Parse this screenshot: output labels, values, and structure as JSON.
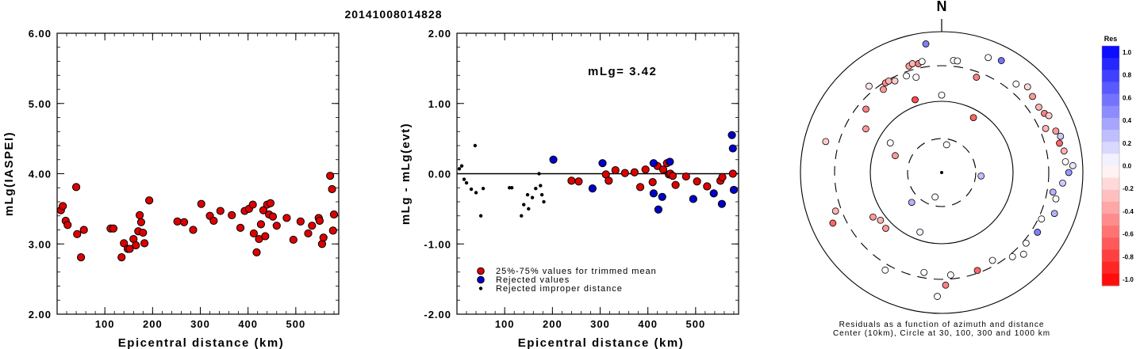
{
  "page_title": "20141008014828",
  "chart_data": [
    {
      "type": "scatter",
      "title": "",
      "xlabel": "Epicentral distance (km)",
      "ylabel": "mLg(IASPEI)",
      "xlim": [
        0,
        590
      ],
      "ylim": [
        2.0,
        6.0
      ],
      "xticks": [
        100,
        200,
        300,
        400,
        500
      ],
      "xtick_labels": [
        "100",
        "200",
        "300",
        "400",
        "500"
      ],
      "yticks": [
        2,
        3,
        4,
        5,
        6
      ],
      "ytick_labels": [
        "2.00",
        "3.00",
        "4.00",
        "5.00",
        "6.00"
      ],
      "color": "#dd0000",
      "points": [
        [
          8,
          3.48
        ],
        [
          12,
          3.54
        ],
        [
          18,
          3.33
        ],
        [
          22,
          3.27
        ],
        [
          40,
          3.81
        ],
        [
          42,
          3.14
        ],
        [
          50,
          2.81
        ],
        [
          56,
          3.2
        ],
        [
          112,
          3.22
        ],
        [
          118,
          3.22
        ],
        [
          135,
          2.81
        ],
        [
          140,
          3.01
        ],
        [
          148,
          2.93
        ],
        [
          152,
          2.93
        ],
        [
          160,
          3.07
        ],
        [
          165,
          2.98
        ],
        [
          170,
          3.18
        ],
        [
          173,
          3.41
        ],
        [
          176,
          3.31
        ],
        [
          180,
          3.16
        ],
        [
          183,
          3.01
        ],
        [
          193,
          3.62
        ],
        [
          252,
          3.32
        ],
        [
          266,
          3.31
        ],
        [
          285,
          3.2
        ],
        [
          302,
          3.57
        ],
        [
          320,
          3.4
        ],
        [
          328,
          3.33
        ],
        [
          342,
          3.47
        ],
        [
          366,
          3.41
        ],
        [
          384,
          3.23
        ],
        [
          393,
          3.47
        ],
        [
          402,
          3.5
        ],
        [
          410,
          3.56
        ],
        [
          412,
          3.15
        ],
        [
          418,
          2.88
        ],
        [
          423,
          3.07
        ],
        [
          427,
          3.28
        ],
        [
          432,
          3.48
        ],
        [
          436,
          3.11
        ],
        [
          440,
          3.56
        ],
        [
          444,
          3.42
        ],
        [
          447,
          3.58
        ],
        [
          452,
          3.39
        ],
        [
          460,
          3.26
        ],
        [
          481,
          3.37
        ],
        [
          495,
          3.06
        ],
        [
          510,
          3.32
        ],
        [
          526,
          3.15
        ],
        [
          534,
          3.26
        ],
        [
          548,
          3.37
        ],
        [
          550,
          3.33
        ],
        [
          555,
          3.0
        ],
        [
          558,
          3.09
        ],
        [
          572,
          3.97
        ],
        [
          576,
          3.78
        ],
        [
          578,
          3.19
        ],
        [
          580,
          3.42
        ]
      ]
    },
    {
      "type": "scatter",
      "title": "",
      "xlabel": "Epicentral distance (km)",
      "ylabel": "mLg - mLg(evt)",
      "xlim": [
        0,
        590
      ],
      "ylim": [
        -2.0,
        2.0
      ],
      "xticks": [
        100,
        200,
        300,
        400,
        500
      ],
      "xtick_labels": [
        "100",
        "200",
        "300",
        "400",
        "500"
      ],
      "yticks": [
        -2,
        -1,
        0,
        1,
        2
      ],
      "ytick_labels": [
        "-2.00",
        "-1.00",
        "0.00",
        "1.00",
        "2.00"
      ],
      "annotation": "mLg= 3.42",
      "legend": [
        "25%-75% values for trimmed mean",
        "Rejected values",
        "Rejected improper distance"
      ],
      "legend_position": "bottom",
      "series": [
        {
          "name": "25%-75% values for trimmed mean",
          "color": "#dd0000",
          "points": [
            [
              240,
              -0.1
            ],
            [
              255,
              -0.11
            ],
            [
              312,
              -0.01
            ],
            [
              318,
              -0.1
            ],
            [
              332,
              0.05
            ],
            [
              352,
              0.01
            ],
            [
              372,
              0.02
            ],
            [
              384,
              -0.19
            ],
            [
              395,
              0.06
            ],
            [
              410,
              -0.12
            ],
            [
              420,
              0.11
            ],
            [
              432,
              0.06
            ],
            [
              440,
              0.15
            ],
            [
              444,
              -0.01
            ],
            [
              447,
              0.0
            ],
            [
              452,
              -0.03
            ],
            [
              458,
              -0.16
            ],
            [
              480,
              -0.04
            ],
            [
              503,
              -0.11
            ],
            [
              524,
              -0.18
            ],
            [
              552,
              -0.1
            ],
            [
              556,
              -0.05
            ],
            [
              578,
              0.0
            ]
          ]
        },
        {
          "name": "Rejected values",
          "color": "#0000cc",
          "points": [
            [
              202,
              0.2
            ],
            [
              284,
              -0.21
            ],
            [
              305,
              0.15
            ],
            [
              412,
              0.15
            ],
            [
              412,
              -0.28
            ],
            [
              422,
              -0.51
            ],
            [
              430,
              -0.33
            ],
            [
              446,
              0.17
            ],
            [
              495,
              -0.36
            ],
            [
              538,
              -0.28
            ],
            [
              555,
              -0.43
            ],
            [
              576,
              0.55
            ],
            [
              578,
              0.36
            ],
            [
              580,
              -0.23
            ]
          ]
        },
        {
          "name": "Rejected improper distance",
          "color": "#000000",
          "points": [
            [
              5,
              0.07
            ],
            [
              10,
              0.11
            ],
            [
              15,
              -0.08
            ],
            [
              20,
              -0.13
            ],
            [
              30,
              -0.22
            ],
            [
              38,
              0.4
            ],
            [
              40,
              -0.27
            ],
            [
              50,
              -0.6
            ],
            [
              55,
              -0.21
            ],
            [
              110,
              -0.2
            ],
            [
              115,
              -0.2
            ],
            [
              135,
              -0.6
            ],
            [
              140,
              -0.44
            ],
            [
              148,
              -0.3
            ],
            [
              150,
              -0.5
            ],
            [
              158,
              -0.34
            ],
            [
              165,
              -0.21
            ],
            [
              172,
              0.0
            ],
            [
              175,
              -0.17
            ],
            [
              178,
              -0.3
            ],
            [
              182,
              -0.4
            ]
          ]
        }
      ]
    }
  ],
  "polar_plot": {
    "north_label": "N",
    "caption_line1": "Residuals as a function of azimuth and distance",
    "caption_line2": "Center (10km), Circle at 30, 100, 300 and 1000 km",
    "colorbar_title": "Res",
    "colorbar_ticks": [
      "1.0",
      "0.8",
      "0.6",
      "0.4",
      "0.2",
      "0.0",
      "-0.2",
      "-0.4",
      "-0.6",
      "-0.8",
      "-1.0"
    ],
    "stations": [
      {
        "az": 10,
        "r": 0.2,
        "res": -0.0
      },
      {
        "az": 195,
        "r": 0.18,
        "res": 0.0
      },
      {
        "az": 95,
        "r": 0.28,
        "res": 0.25
      },
      {
        "az": 225,
        "r": 0.3,
        "res": 0.3
      },
      {
        "az": 290,
        "r": 0.35,
        "res": -0.4
      },
      {
        "az": 200,
        "r": 0.45,
        "res": 0.05
      },
      {
        "az": 300,
        "r": 0.42,
        "res": 0.0
      },
      {
        "az": 340,
        "r": 0.55,
        "res": -0.7
      },
      {
        "az": 30,
        "r": 0.45,
        "res": -0.6
      },
      {
        "az": 0,
        "r": 0.55,
        "res": 0.0
      },
      {
        "az": 300,
        "r": 0.62,
        "res": -0.4
      },
      {
        "az": 310,
        "r": 0.7,
        "res": -0.5
      },
      {
        "az": 325,
        "r": 0.72,
        "res": -0.4
      },
      {
        "az": 328,
        "r": 0.75,
        "res": -0.45
      },
      {
        "az": 330,
        "r": 0.75,
        "res": -0.3
      },
      {
        "az": 333,
        "r": 0.73,
        "res": -0.2
      },
      {
        "az": 345,
        "r": 0.7,
        "res": 0.0
      },
      {
        "az": 20,
        "r": 0.72,
        "res": -0.5
      },
      {
        "az": 22,
        "r": 0.88,
        "res": 0.0
      },
      {
        "az": 28,
        "r": 0.9,
        "res": 0.55
      },
      {
        "az": 40,
        "r": 0.82,
        "res": 0.0
      },
      {
        "az": 45,
        "r": 0.86,
        "res": -0.15
      },
      {
        "az": 50,
        "r": 0.84,
        "res": -0.4
      },
      {
        "az": 56,
        "r": 0.83,
        "res": -0.3
      },
      {
        "az": 60,
        "r": 0.84,
        "res": -0.5
      },
      {
        "az": 62,
        "r": 0.86,
        "res": -0.2
      },
      {
        "az": 67,
        "r": 0.8,
        "res": -0.3
      },
      {
        "az": 70,
        "r": 0.86,
        "res": -0.4
      },
      {
        "az": 73,
        "r": 0.88,
        "res": 0.2
      },
      {
        "az": 76,
        "r": 0.86,
        "res": -0.6
      },
      {
        "az": 80,
        "r": 0.88,
        "res": -0.3
      },
      {
        "az": 85,
        "r": 0.88,
        "res": 0.0
      },
      {
        "az": 87,
        "r": 0.93,
        "res": 0.1
      },
      {
        "az": 90,
        "r": 0.9,
        "res": 0.4
      },
      {
        "az": 95,
        "r": 0.86,
        "res": 0.2
      },
      {
        "az": 100,
        "r": 0.8,
        "res": 0.3
      },
      {
        "az": 103,
        "r": 0.83,
        "res": 0.0
      },
      {
        "az": 110,
        "r": 0.85,
        "res": 0.3
      },
      {
        "az": 115,
        "r": 0.78,
        "res": 0.0
      },
      {
        "az": 122,
        "r": 0.8,
        "res": 0.5
      },
      {
        "az": 130,
        "r": 0.78,
        "res": 0.0
      },
      {
        "az": 135,
        "r": 0.82,
        "res": 0.0
      },
      {
        "az": 140,
        "r": 0.78,
        "res": 0.0
      },
      {
        "az": 150,
        "r": 0.72,
        "res": 0.0
      },
      {
        "az": 160,
        "r": 0.74,
        "res": -0.6
      },
      {
        "az": 175,
        "r": 0.73,
        "res": 0.0
      },
      {
        "az": 178,
        "r": 0.8,
        "res": -0.5
      },
      {
        "az": 182,
        "r": 0.88,
        "res": 0.0
      },
      {
        "az": 190,
        "r": 0.72,
        "res": 0.0
      },
      {
        "az": 210,
        "r": 0.8,
        "res": 0.0
      },
      {
        "az": 225,
        "r": 0.56,
        "res": -0.4
      },
      {
        "az": 232,
        "r": 0.55,
        "res": -0.3
      },
      {
        "az": 237,
        "r": 0.58,
        "res": -0.4
      },
      {
        "az": 245,
        "r": 0.85,
        "res": -0.6
      },
      {
        "az": 250,
        "r": 0.8,
        "res": -0.3
      },
      {
        "az": 285,
        "r": 0.85,
        "res": -0.2
      },
      {
        "az": 320,
        "r": 0.8,
        "res": -0.1
      },
      {
        "az": 340,
        "r": 0.73,
        "res": 0.0
      },
      {
        "az": 343,
        "r": 0.79,
        "res": -0.4
      },
      {
        "az": 345,
        "r": 0.8,
        "res": -0.3
      },
      {
        "az": 348,
        "r": 0.79,
        "res": -0.5
      },
      {
        "az": 350,
        "r": 0.8,
        "res": 0.0
      },
      {
        "az": 353,
        "r": 0.92,
        "res": 0.5
      },
      {
        "az": 6,
        "r": 0.8,
        "res": 0.0
      },
      {
        "az": 8,
        "r": 0.8,
        "res": 0.0
      }
    ]
  }
}
